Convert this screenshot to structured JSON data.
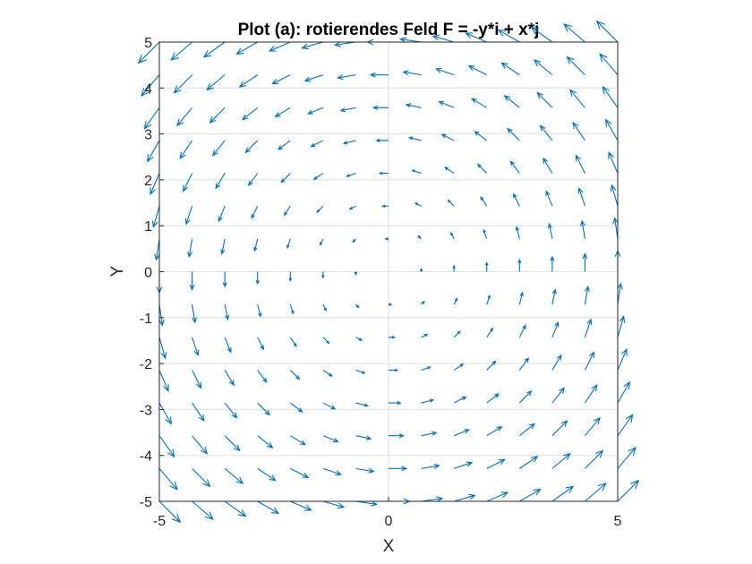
{
  "chart_data": {
    "type": "quiver",
    "title": "Plot (a): rotierendes Feld F = -y*i + x*j",
    "xlabel": "X",
    "ylabel": "Y",
    "xlim": [
      -5,
      5
    ],
    "ylim": [
      -5,
      5
    ],
    "xticks": [
      "-5",
      "0",
      "5"
    ],
    "yticks": [
      "5",
      "4",
      "3",
      "2",
      "1",
      "0",
      "-1",
      "-2",
      "-3",
      "-4",
      "-5"
    ],
    "grid": "horizontal",
    "field": {
      "u": "-y",
      "v": "x"
    },
    "grid_points": {
      "x_start": -5,
      "x_end": 5,
      "x_step": 0.7143,
      "y_start": -5,
      "y_end": 5,
      "y_step": 0.7143
    },
    "color": "#0072bd"
  }
}
